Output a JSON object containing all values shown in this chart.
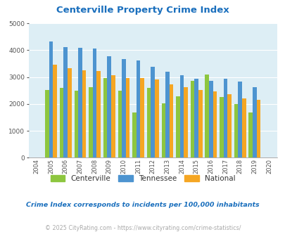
{
  "title": "Centerville Property Crime Index",
  "years": [
    "2004",
    "2005",
    "2006",
    "2007",
    "2008",
    "2009",
    "2010",
    "2011",
    "2012",
    "2013",
    "2014",
    "2015",
    "2016",
    "2017",
    "2018",
    "2019",
    "2020"
  ],
  "centerville": [
    0,
    2520,
    2600,
    2490,
    2610,
    2960,
    2490,
    1680,
    2590,
    2020,
    2280,
    2870,
    3100,
    2250,
    2000,
    1680,
    0
  ],
  "tennessee": [
    0,
    4310,
    4100,
    4080,
    4050,
    3780,
    3680,
    3610,
    3380,
    3190,
    3060,
    2930,
    2870,
    2940,
    2840,
    2630,
    0
  ],
  "national": [
    0,
    3450,
    3340,
    3250,
    3230,
    3060,
    2960,
    2960,
    2900,
    2730,
    2610,
    2510,
    2460,
    2360,
    2200,
    2150,
    0
  ],
  "centerville_color": "#8dc63f",
  "tennessee_color": "#4d94d0",
  "national_color": "#f5a623",
  "bg_color": "#ddeef5",
  "plot_bg": "#ddeef5",
  "title_color": "#1a6fbd",
  "subtitle_color": "#1a6fbd",
  "footer_color": "#aaaaaa",
  "ylim": [
    0,
    5000
  ],
  "yticks": [
    0,
    1000,
    2000,
    3000,
    4000,
    5000
  ],
  "subtitle": "Crime Index corresponds to incidents per 100,000 inhabitants",
  "footer": "© 2025 CityRating.com - https://www.cityrating.com/crime-statistics/"
}
